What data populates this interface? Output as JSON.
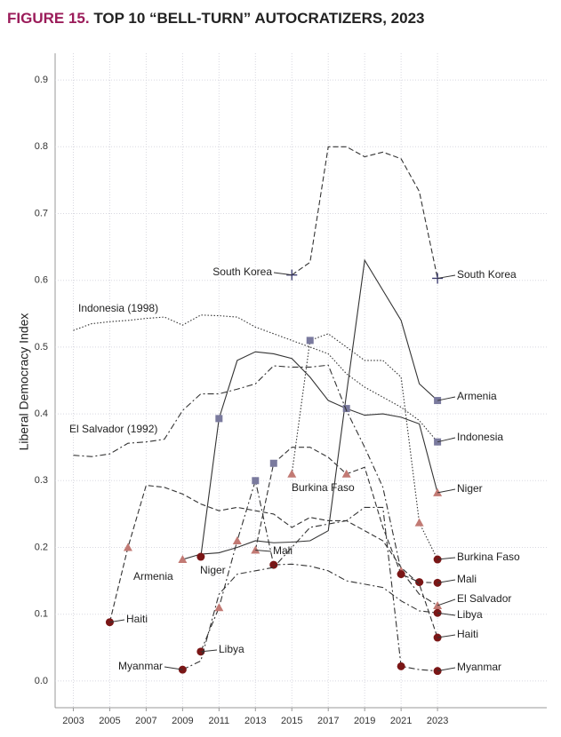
{
  "chart_data": {
    "type": "line",
    "figure_label": "FIGURE 15.",
    "title": "TOP 10 “BELL-TURN” AUTOCRATIZERS, 2023",
    "y_label": "Liberal Democracy Index",
    "x": [
      2003,
      2004,
      2005,
      2006,
      2007,
      2008,
      2009,
      2010,
      2011,
      2012,
      2013,
      2014,
      2015,
      2016,
      2017,
      2018,
      2019,
      2020,
      2021,
      2022,
      2023
    ],
    "xlim": [
      2002,
      2029
    ],
    "xticks": [
      2003,
      2005,
      2007,
      2009,
      2011,
      2013,
      2015,
      2017,
      2019,
      2021,
      2023
    ],
    "ylim": [
      -0.04,
      0.94
    ],
    "yticks": [
      {
        "value": 0,
        "label": "0.0"
      },
      0.1,
      0.2,
      0.3,
      0.4,
      0.5,
      0.6,
      0.7,
      0.8,
      0.9
    ],
    "grid": true,
    "line_color": "#333333",
    "marker_colors": {
      "circle": "#7a1616",
      "triangle": "#c27a74",
      "square": "#7a7a9e",
      "plus": "#3a3a6e"
    },
    "series": [
      {
        "name": "South Korea",
        "line_style": "dashed",
        "values": [
          null,
          null,
          null,
          null,
          null,
          null,
          null,
          null,
          null,
          null,
          null,
          null,
          0.608,
          0.627,
          0.8,
          0.8,
          0.785,
          0.792,
          0.782,
          0.733,
          0.603
        ],
        "marker_x": [
          2015,
          2023
        ],
        "marker_shapes": [
          "plus",
          "plus"
        ]
      },
      {
        "name": "Armenia",
        "line_style": "solid",
        "values": [
          null,
          null,
          null,
          null,
          null,
          null,
          0.182,
          0.19,
          0.192,
          0.2,
          0.21,
          0.207,
          0.208,
          0.21,
          0.225,
          0.43,
          0.63,
          0.585,
          0.54,
          0.445,
          0.42
        ],
        "marker_x": [
          2009,
          2023
        ],
        "marker_shapes": [
          "triangle",
          "square"
        ]
      },
      {
        "name": "Niger",
        "line_style": "solid",
        "values": [
          null,
          null,
          null,
          null,
          null,
          null,
          null,
          0.186,
          0.393,
          0.48,
          0.493,
          0.49,
          0.483,
          0.455,
          0.42,
          0.408,
          0.398,
          0.4,
          0.395,
          0.385,
          0.282
        ],
        "marker_x": [
          2010,
          2011,
          2018,
          2023
        ],
        "marker_shapes": [
          "circle",
          "square",
          "square",
          "triangle"
        ]
      },
      {
        "name": "Indonesia",
        "start_label": "Indonesia (1998)",
        "line_style": "dotted",
        "values": [
          0.525,
          0.535,
          0.538,
          0.54,
          0.543,
          0.545,
          0.533,
          0.548,
          0.547,
          0.545,
          0.53,
          0.52,
          0.51,
          0.5,
          0.49,
          0.46,
          0.44,
          0.425,
          0.41,
          0.39,
          0.358
        ],
        "marker_x": [
          2023
        ],
        "marker_shapes": [
          "square"
        ]
      },
      {
        "name": "El Salvador",
        "start_label": "El Salvador (1992)",
        "line_style": "dashdot",
        "values": [
          0.338,
          0.336,
          0.34,
          0.356,
          0.358,
          0.362,
          0.405,
          0.43,
          0.43,
          0.437,
          0.445,
          0.472,
          0.47,
          0.47,
          0.473,
          0.405,
          0.35,
          0.29,
          0.165,
          0.13,
          0.113
        ],
        "marker_x": [
          2021,
          2023
        ],
        "marker_shapes": [
          "triangle",
          "triangle"
        ]
      },
      {
        "name": "Burkina Faso",
        "line_style": "dotted",
        "values": [
          null,
          null,
          null,
          null,
          null,
          null,
          null,
          null,
          null,
          null,
          null,
          null,
          0.31,
          0.51,
          0.52,
          0.5,
          0.48,
          0.48,
          0.455,
          0.237,
          0.182
        ],
        "marker_x": [
          2015,
          2016,
          2022,
          2023
        ],
        "marker_shapes": [
          "triangle",
          "square",
          "triangle",
          "circle"
        ]
      },
      {
        "name": "Mali",
        "line_style": "dashed",
        "values": [
          null,
          null,
          null,
          null,
          null,
          null,
          null,
          null,
          null,
          null,
          0.196,
          0.326,
          0.35,
          0.35,
          0.335,
          0.31,
          0.32,
          0.23,
          0.16,
          0.148,
          0.147
        ],
        "marker_x": [
          2013,
          2014,
          2018,
          2021,
          2022,
          2023
        ],
        "marker_shapes": [
          "triangle",
          "square",
          "triangle",
          "circle",
          "circle",
          "circle"
        ]
      },
      {
        "name": "Haiti",
        "line_style": "dashed",
        "values": [
          null,
          null,
          0.088,
          0.2,
          0.293,
          0.29,
          0.28,
          0.265,
          0.255,
          0.26,
          0.255,
          0.25,
          0.23,
          0.245,
          0.24,
          0.24,
          0.225,
          0.21,
          0.17,
          0.145,
          0.065
        ],
        "marker_x": [
          2005,
          2006,
          2023
        ],
        "marker_shapes": [
          "circle",
          "triangle",
          "circle"
        ]
      },
      {
        "name": "Libya",
        "line_style": "dashdot",
        "values": [
          null,
          null,
          null,
          null,
          null,
          null,
          null,
          0.044,
          0.11,
          0.21,
          0.3,
          0.174,
          0.175,
          0.172,
          0.165,
          0.15,
          0.145,
          0.14,
          0.12,
          0.105,
          0.102
        ],
        "marker_x": [
          2010,
          2011,
          2012,
          2013,
          2014,
          2023
        ],
        "marker_shapes": [
          "circle",
          "triangle",
          "triangle",
          "square",
          "circle",
          "circle"
        ]
      },
      {
        "name": "Myanmar",
        "line_style": "dashdot",
        "values": [
          null,
          null,
          null,
          null,
          null,
          null,
          0.017,
          0.03,
          0.13,
          0.16,
          0.165,
          0.17,
          0.2,
          0.23,
          0.235,
          0.24,
          0.26,
          0.26,
          0.022,
          0.017,
          0.015
        ],
        "marker_x": [
          2009,
          2021,
          2023
        ],
        "marker_shapes": [
          "circle",
          "circle",
          "circle"
        ]
      }
    ]
  }
}
